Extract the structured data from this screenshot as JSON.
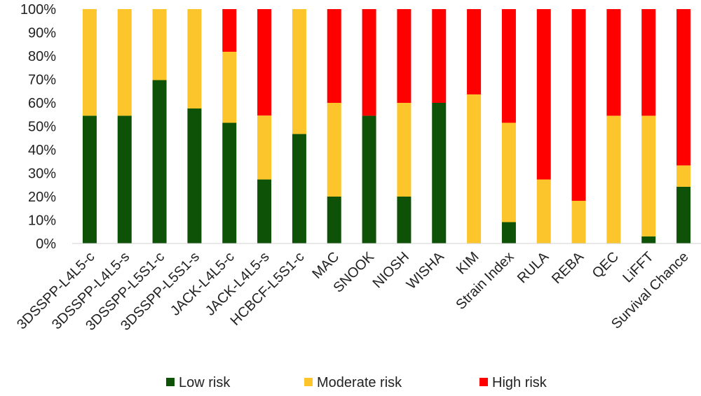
{
  "chart_data": {
    "type": "bar",
    "stacked": true,
    "normalized_100": true,
    "categories": [
      "3DSSPP-L4L5-c",
      "3DSSPP-L4L5-s",
      "3DSSPP-L5S1-c",
      "3DSSPP-L5S1-s",
      "JACK-L4L5-c",
      "JACK-L4L5-s",
      "HCBCF-L5S1-c",
      "MAC",
      "SNOOK",
      "NIOSH",
      "WISHA",
      "KIM",
      "Strain Index",
      "RULA",
      "REBA",
      "QEC",
      "LiFFT",
      "Survival Chance"
    ],
    "series": [
      {
        "name": "Low risk",
        "color": "#0d5206",
        "values": [
          54.5,
          54.5,
          69.7,
          57.6,
          51.5,
          27.3,
          46.7,
          20,
          54.5,
          20,
          60,
          0,
          9.1,
          0,
          0,
          0,
          3,
          24.2
        ]
      },
      {
        "name": "Moderate risk",
        "color": "#fdc52c",
        "values": [
          45.5,
          45.5,
          30.3,
          42.4,
          30.3,
          27.3,
          53.3,
          40,
          0,
          40,
          0,
          63.6,
          42.4,
          27.3,
          18.2,
          54.5,
          51.5,
          9.1
        ]
      },
      {
        "name": "High risk",
        "color": "#fe0000",
        "values": [
          0,
          0,
          0,
          0,
          18.2,
          45.4,
          0,
          40,
          45.5,
          40,
          40,
          36.4,
          48.5,
          72.7,
          81.8,
          45.5,
          45.5,
          66.7
        ]
      }
    ],
    "yticks": [
      "0%",
      "10%",
      "20%",
      "30%",
      "40%",
      "50%",
      "60%",
      "70%",
      "80%",
      "90%",
      "100%"
    ],
    "ylim": [
      0,
      100
    ],
    "grid": false,
    "legend_position": "bottom",
    "title": "",
    "xlabel": "",
    "ylabel": ""
  }
}
